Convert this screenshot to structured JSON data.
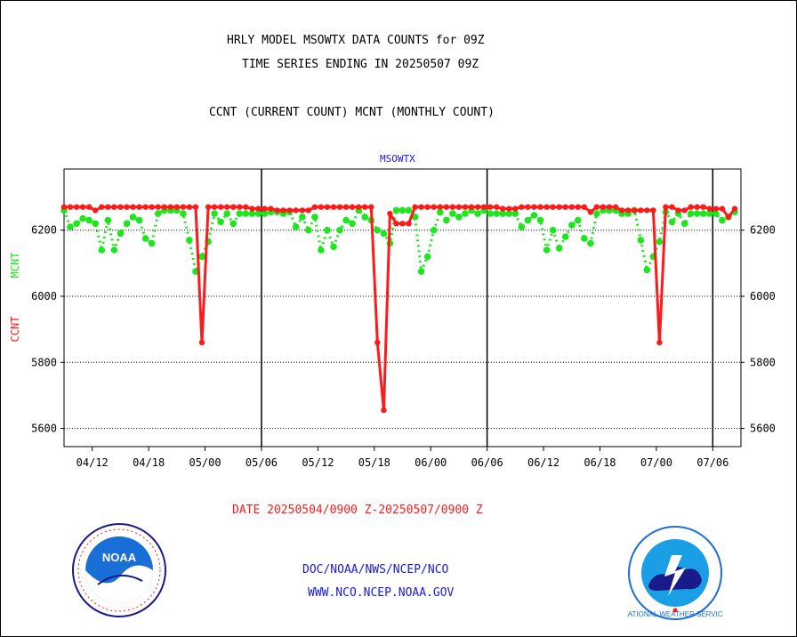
{
  "header": {
    "title_line1": "HRLY MODEL MSOWTX DATA COUNTS for 09Z",
    "title_line2": "TIME SERIES ENDING IN 20250507 09Z",
    "subtitle": "CCNT (CURRENT COUNT) MCNT (MONTHLY COUNT)",
    "panel_label": "MSOWTX"
  },
  "axis": {
    "ylabel_ccnt": "CCNT",
    "ylabel_mcnt": "MCNT"
  },
  "footer": {
    "date_range": "DATE 20250504/0900 Z-20250507/0900 Z",
    "link1": "DOC/NOAA/NWS/NCEP/NCO",
    "link2": "WWW.NCO.NCEP.NOAA.GOV",
    "noaa_logo": "NOAA",
    "nws_logo": "NATIONAL WEATHER SERVICE"
  },
  "colors": {
    "ccnt": "#ff1a1a",
    "mcnt": "#1ee61e",
    "title_blue": "#1a1ad6"
  },
  "chart_data": {
    "type": "line",
    "yticks": [
      5600,
      5800,
      6000,
      6200
    ],
    "ylim": [
      5545,
      6385
    ],
    "xlim": [
      0,
      108
    ],
    "grid": "horizontal dotted",
    "xtick_labels": [
      {
        "label": "04/12",
        "x": 4.5
      },
      {
        "label": "04/18",
        "x": 13.5
      },
      {
        "label": "05/00",
        "x": 22.5
      },
      {
        "label": "05/06",
        "x": 31.5
      },
      {
        "label": "05/12",
        "x": 40.5
      },
      {
        "label": "05/18",
        "x": 49.5
      },
      {
        "label": "06/00",
        "x": 58.5
      },
      {
        "label": "06/06",
        "x": 67.5
      },
      {
        "label": "06/12",
        "x": 76.5
      },
      {
        "label": "06/18",
        "x": 85.5
      },
      {
        "label": "07/00",
        "x": 94.5
      },
      {
        "label": "07/06",
        "x": 103.5
      }
    ],
    "separators": [
      31.5,
      67.5,
      103.5
    ],
    "series": [
      {
        "name": "CCNT",
        "values": [
          6270,
          6270,
          6270,
          6270,
          6270,
          6260,
          6270,
          6270,
          6270,
          6270,
          6270,
          6270,
          6270,
          6270,
          6270,
          6270,
          6270,
          6270,
          6270,
          6270,
          6270,
          6270,
          5860,
          6270,
          6270,
          6270,
          6270,
          6270,
          6270,
          6270,
          6265,
          6265,
          6265,
          6265,
          6260,
          6260,
          6260,
          6260,
          6260,
          6260,
          6270,
          6270,
          6270,
          6270,
          6270,
          6270,
          6270,
          6270,
          6270,
          6270,
          5860,
          5655,
          6250,
          6220,
          6220,
          6220,
          6270,
          6270,
          6270,
          6270,
          6270,
          6270,
          6270,
          6270,
          6270,
          6270,
          6270,
          6270,
          6270,
          6270,
          6265,
          6265,
          6265,
          6270,
          6270,
          6270,
          6270,
          6270,
          6270,
          6270,
          6270,
          6270,
          6270,
          6270,
          6255,
          6270,
          6270,
          6270,
          6270,
          6260,
          6260,
          6260,
          6260,
          6260,
          6260,
          5860,
          6270,
          6270,
          6260,
          6260,
          6270,
          6270,
          6270,
          6265,
          6265,
          6265,
          6240,
          6265
        ]
      },
      {
        "name": "MCNT",
        "values": [
          6260,
          6210,
          6220,
          6235,
          6230,
          6220,
          6140,
          6230,
          6140,
          6190,
          6220,
          6240,
          6230,
          6175,
          6160,
          6250,
          6260,
          6260,
          6260,
          6250,
          6170,
          6075,
          6120,
          6165,
          6250,
          6225,
          6250,
          6220,
          6250,
          6250,
          6250,
          6250,
          6250,
          6255,
          6255,
          6250,
          6255,
          6210,
          6240,
          6200,
          6240,
          6140,
          6200,
          6150,
          6200,
          6230,
          6220,
          6260,
          6240,
          6230,
          6200,
          6190,
          6160,
          6260,
          6260,
          6260,
          6240,
          6075,
          6120,
          6200,
          6255,
          6230,
          6250,
          6240,
          6250,
          6260,
          6250,
          6260,
          6250,
          6250,
          6250,
          6250,
          6250,
          6210,
          6230,
          6245,
          6230,
          6140,
          6200,
          6145,
          6180,
          6215,
          6230,
          6175,
          6160,
          6250,
          6260,
          6260,
          6260,
          6250,
          6250,
          6260,
          6170,
          6080,
          6120,
          6165,
          6255,
          6225,
          6250,
          6220,
          6250,
          6250,
          6250,
          6250,
          6250,
          6230,
          6240,
          6255
        ]
      }
    ]
  }
}
